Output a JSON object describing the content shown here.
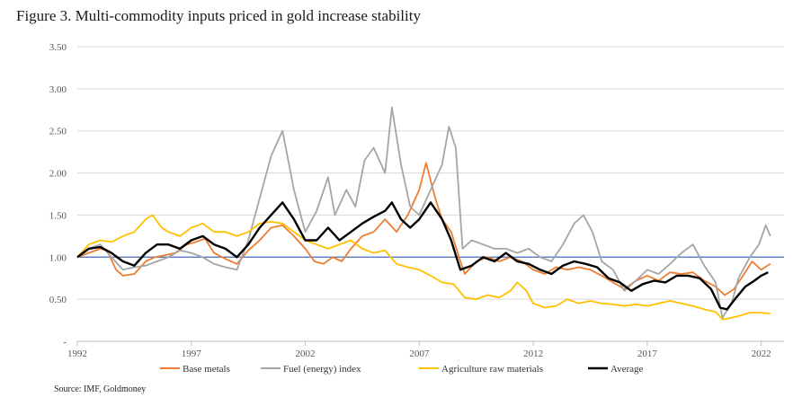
{
  "figure": {
    "title": "Figure 3. Multi-commodity inputs priced in gold increase stability",
    "source": "Source: IMF, Goldmoney"
  },
  "chart_data": {
    "type": "line",
    "title": "Figure 3. Multi-commodity inputs priced in gold increase stability",
    "xlabel": "",
    "ylabel": "",
    "xlim": [
      1992,
      2023
    ],
    "ylim": [
      0,
      3.5
    ],
    "x_ticks": [
      "1992",
      "1997",
      "2002",
      "2007",
      "2012",
      "2017",
      "2022"
    ],
    "y_ticks": [
      "3.50",
      "3.00",
      "2.50",
      "2.00",
      "1.50",
      "1.00",
      "0.50",
      "-"
    ],
    "grid": "horizontal",
    "legend_position": "bottom",
    "reference_line": {
      "y": 1.0,
      "color": "#4472c4"
    },
    "series": [
      {
        "name": "Base metals",
        "color": "#ed7d31",
        "points": [
          [
            1992.0,
            1.0
          ],
          [
            1992.5,
            1.05
          ],
          [
            1993.0,
            1.1
          ],
          [
            1993.3,
            1.08
          ],
          [
            1993.7,
            0.85
          ],
          [
            1994.0,
            0.78
          ],
          [
            1994.5,
            0.8
          ],
          [
            1995.0,
            0.95
          ],
          [
            1995.4,
            1.0
          ],
          [
            1995.8,
            1.02
          ],
          [
            1996.3,
            1.05
          ],
          [
            1996.8,
            1.15
          ],
          [
            1997.2,
            1.18
          ],
          [
            1997.6,
            1.22
          ],
          [
            1998.0,
            1.05
          ],
          [
            1998.5,
            0.98
          ],
          [
            1999.0,
            0.92
          ],
          [
            1999.5,
            1.08
          ],
          [
            2000.0,
            1.2
          ],
          [
            2000.5,
            1.35
          ],
          [
            2001.0,
            1.38
          ],
          [
            2001.5,
            1.25
          ],
          [
            2002.0,
            1.1
          ],
          [
            2002.4,
            0.95
          ],
          [
            2002.8,
            0.92
          ],
          [
            2003.2,
            1.0
          ],
          [
            2003.6,
            0.95
          ],
          [
            2004.0,
            1.1
          ],
          [
            2004.5,
            1.25
          ],
          [
            2005.0,
            1.3
          ],
          [
            2005.5,
            1.45
          ],
          [
            2006.0,
            1.3
          ],
          [
            2006.5,
            1.5
          ],
          [
            2007.0,
            1.8
          ],
          [
            2007.3,
            2.12
          ],
          [
            2007.7,
            1.7
          ],
          [
            2008.0,
            1.45
          ],
          [
            2008.4,
            1.3
          ],
          [
            2008.8,
            0.95
          ],
          [
            2009.0,
            0.8
          ],
          [
            2009.5,
            0.95
          ],
          [
            2010.0,
            1.0
          ],
          [
            2010.5,
            0.95
          ],
          [
            2011.0,
            1.0
          ],
          [
            2011.5,
            0.95
          ],
          [
            2012.0,
            0.85
          ],
          [
            2012.5,
            0.8
          ],
          [
            2013.0,
            0.88
          ],
          [
            2013.5,
            0.85
          ],
          [
            2014.0,
            0.88
          ],
          [
            2014.5,
            0.85
          ],
          [
            2015.0,
            0.78
          ],
          [
            2015.5,
            0.7
          ],
          [
            2016.0,
            0.62
          ],
          [
            2016.5,
            0.72
          ],
          [
            2017.0,
            0.78
          ],
          [
            2017.5,
            0.72
          ],
          [
            2018.0,
            0.82
          ],
          [
            2018.5,
            0.8
          ],
          [
            2019.0,
            0.82
          ],
          [
            2019.5,
            0.72
          ],
          [
            2020.0,
            0.65
          ],
          [
            2020.4,
            0.55
          ],
          [
            2020.8,
            0.62
          ],
          [
            2021.2,
            0.78
          ],
          [
            2021.6,
            0.95
          ],
          [
            2022.0,
            0.85
          ],
          [
            2022.4,
            0.92
          ]
        ]
      },
      {
        "name": "Fuel (energy) index",
        "color": "#a5a5a5",
        "points": [
          [
            1992.0,
            1.0
          ],
          [
            1992.5,
            1.1
          ],
          [
            1993.0,
            1.15
          ],
          [
            1993.5,
            1.0
          ],
          [
            1994.0,
            0.85
          ],
          [
            1994.5,
            0.88
          ],
          [
            1995.0,
            0.9
          ],
          [
            1995.5,
            0.95
          ],
          [
            1996.0,
            1.0
          ],
          [
            1996.5,
            1.08
          ],
          [
            1997.0,
            1.05
          ],
          [
            1997.5,
            1.0
          ],
          [
            1998.0,
            0.92
          ],
          [
            1998.5,
            0.88
          ],
          [
            1999.0,
            0.85
          ],
          [
            1999.5,
            1.2
          ],
          [
            2000.0,
            1.7
          ],
          [
            2000.5,
            2.2
          ],
          [
            2001.0,
            2.5
          ],
          [
            2001.5,
            1.8
          ],
          [
            2002.0,
            1.3
          ],
          [
            2002.5,
            1.55
          ],
          [
            2003.0,
            1.95
          ],
          [
            2003.3,
            1.5
          ],
          [
            2003.8,
            1.8
          ],
          [
            2004.2,
            1.6
          ],
          [
            2004.6,
            2.15
          ],
          [
            2005.0,
            2.3
          ],
          [
            2005.5,
            2.0
          ],
          [
            2005.8,
            2.78
          ],
          [
            2006.2,
            2.1
          ],
          [
            2006.6,
            1.6
          ],
          [
            2007.0,
            1.5
          ],
          [
            2007.5,
            1.8
          ],
          [
            2008.0,
            2.1
          ],
          [
            2008.3,
            2.55
          ],
          [
            2008.6,
            2.3
          ],
          [
            2008.9,
            1.1
          ],
          [
            2009.3,
            1.2
          ],
          [
            2009.8,
            1.15
          ],
          [
            2010.3,
            1.1
          ],
          [
            2010.8,
            1.1
          ],
          [
            2011.3,
            1.05
          ],
          [
            2011.8,
            1.1
          ],
          [
            2012.3,
            1.0
          ],
          [
            2012.8,
            0.95
          ],
          [
            2013.3,
            1.15
          ],
          [
            2013.8,
            1.4
          ],
          [
            2014.2,
            1.5
          ],
          [
            2014.6,
            1.3
          ],
          [
            2015.0,
            0.95
          ],
          [
            2015.5,
            0.85
          ],
          [
            2016.0,
            0.6
          ],
          [
            2016.5,
            0.72
          ],
          [
            2017.0,
            0.85
          ],
          [
            2017.5,
            0.8
          ],
          [
            2018.0,
            0.92
          ],
          [
            2018.5,
            1.05
          ],
          [
            2019.0,
            1.15
          ],
          [
            2019.5,
            0.9
          ],
          [
            2020.0,
            0.7
          ],
          [
            2020.3,
            0.28
          ],
          [
            2020.7,
            0.45
          ],
          [
            2021.0,
            0.75
          ],
          [
            2021.5,
            1.0
          ],
          [
            2021.9,
            1.15
          ],
          [
            2022.2,
            1.38
          ],
          [
            2022.4,
            1.25
          ]
        ]
      },
      {
        "name": "Agriculture raw materials",
        "color": "#ffc000",
        "points": [
          [
            1992.0,
            1.0
          ],
          [
            1992.5,
            1.15
          ],
          [
            1993.0,
            1.2
          ],
          [
            1993.5,
            1.18
          ],
          [
            1994.0,
            1.25
          ],
          [
            1994.5,
            1.3
          ],
          [
            1995.0,
            1.45
          ],
          [
            1995.3,
            1.5
          ],
          [
            1995.7,
            1.35
          ],
          [
            1996.0,
            1.3
          ],
          [
            1996.5,
            1.25
          ],
          [
            1997.0,
            1.35
          ],
          [
            1997.5,
            1.4
          ],
          [
            1998.0,
            1.3
          ],
          [
            1998.5,
            1.3
          ],
          [
            1999.0,
            1.25
          ],
          [
            1999.5,
            1.3
          ],
          [
            2000.0,
            1.4
          ],
          [
            2000.5,
            1.42
          ],
          [
            2001.0,
            1.4
          ],
          [
            2001.5,
            1.3
          ],
          [
            2002.0,
            1.2
          ],
          [
            2002.5,
            1.15
          ],
          [
            2003.0,
            1.1
          ],
          [
            2003.5,
            1.15
          ],
          [
            2004.0,
            1.2
          ],
          [
            2004.5,
            1.1
          ],
          [
            2005.0,
            1.05
          ],
          [
            2005.5,
            1.08
          ],
          [
            2006.0,
            0.92
          ],
          [
            2006.5,
            0.88
          ],
          [
            2007.0,
            0.85
          ],
          [
            2007.5,
            0.78
          ],
          [
            2008.0,
            0.7
          ],
          [
            2008.5,
            0.68
          ],
          [
            2009.0,
            0.52
          ],
          [
            2009.5,
            0.5
          ],
          [
            2010.0,
            0.55
          ],
          [
            2010.5,
            0.52
          ],
          [
            2011.0,
            0.6
          ],
          [
            2011.3,
            0.7
          ],
          [
            2011.7,
            0.6
          ],
          [
            2012.0,
            0.45
          ],
          [
            2012.5,
            0.4
          ],
          [
            2013.0,
            0.42
          ],
          [
            2013.5,
            0.5
          ],
          [
            2014.0,
            0.45
          ],
          [
            2014.5,
            0.48
          ],
          [
            2015.0,
            0.45
          ],
          [
            2015.5,
            0.44
          ],
          [
            2016.0,
            0.42
          ],
          [
            2016.5,
            0.44
          ],
          [
            2017.0,
            0.42
          ],
          [
            2017.5,
            0.45
          ],
          [
            2018.0,
            0.48
          ],
          [
            2018.5,
            0.45
          ],
          [
            2019.0,
            0.42
          ],
          [
            2019.5,
            0.38
          ],
          [
            2020.0,
            0.35
          ],
          [
            2020.3,
            0.26
          ],
          [
            2020.7,
            0.28
          ],
          [
            2021.0,
            0.3
          ],
          [
            2021.5,
            0.34
          ],
          [
            2022.0,
            0.34
          ],
          [
            2022.4,
            0.33
          ]
        ]
      },
      {
        "name": "Average",
        "color": "#000000",
        "points": [
          [
            1992.0,
            1.0
          ],
          [
            1992.5,
            1.1
          ],
          [
            1993.0,
            1.12
          ],
          [
            1993.5,
            1.05
          ],
          [
            1994.0,
            0.95
          ],
          [
            1994.5,
            0.9
          ],
          [
            1995.0,
            1.05
          ],
          [
            1995.5,
            1.15
          ],
          [
            1996.0,
            1.15
          ],
          [
            1996.5,
            1.1
          ],
          [
            1997.0,
            1.2
          ],
          [
            1997.5,
            1.25
          ],
          [
            1998.0,
            1.15
          ],
          [
            1998.5,
            1.1
          ],
          [
            1999.0,
            1.0
          ],
          [
            1999.5,
            1.15
          ],
          [
            2000.0,
            1.35
          ],
          [
            2000.5,
            1.5
          ],
          [
            2001.0,
            1.65
          ],
          [
            2001.5,
            1.45
          ],
          [
            2002.0,
            1.2
          ],
          [
            2002.5,
            1.2
          ],
          [
            2003.0,
            1.35
          ],
          [
            2003.5,
            1.2
          ],
          [
            2004.0,
            1.3
          ],
          [
            2004.5,
            1.4
          ],
          [
            2005.0,
            1.48
          ],
          [
            2005.5,
            1.55
          ],
          [
            2005.8,
            1.65
          ],
          [
            2006.2,
            1.45
          ],
          [
            2006.6,
            1.35
          ],
          [
            2007.0,
            1.45
          ],
          [
            2007.5,
            1.65
          ],
          [
            2008.0,
            1.45
          ],
          [
            2008.4,
            1.2
          ],
          [
            2008.8,
            0.85
          ],
          [
            2009.3,
            0.9
          ],
          [
            2009.8,
            1.0
          ],
          [
            2010.3,
            0.95
          ],
          [
            2010.8,
            1.05
          ],
          [
            2011.3,
            0.95
          ],
          [
            2011.8,
            0.92
          ],
          [
            2012.3,
            0.85
          ],
          [
            2012.8,
            0.8
          ],
          [
            2013.3,
            0.9
          ],
          [
            2013.8,
            0.95
          ],
          [
            2014.3,
            0.92
          ],
          [
            2014.8,
            0.88
          ],
          [
            2015.3,
            0.75
          ],
          [
            2015.8,
            0.7
          ],
          [
            2016.3,
            0.6
          ],
          [
            2016.8,
            0.68
          ],
          [
            2017.3,
            0.72
          ],
          [
            2017.8,
            0.7
          ],
          [
            2018.3,
            0.78
          ],
          [
            2018.8,
            0.78
          ],
          [
            2019.3,
            0.75
          ],
          [
            2019.8,
            0.62
          ],
          [
            2020.2,
            0.4
          ],
          [
            2020.5,
            0.38
          ],
          [
            2020.9,
            0.52
          ],
          [
            2021.3,
            0.65
          ],
          [
            2021.7,
            0.72
          ],
          [
            2022.0,
            0.78
          ],
          [
            2022.3,
            0.82
          ]
        ]
      }
    ]
  }
}
